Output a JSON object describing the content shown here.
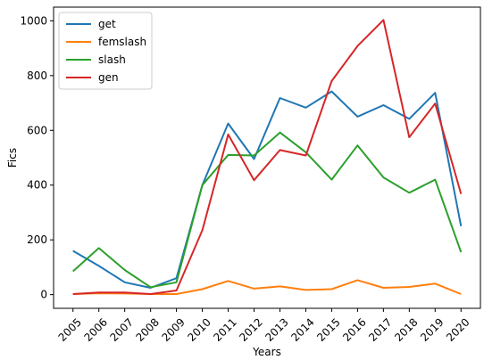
{
  "chart_data": {
    "type": "line",
    "x": [
      2005,
      2006,
      2007,
      2008,
      2009,
      2010,
      2011,
      2012,
      2013,
      2014,
      2015,
      2016,
      2017,
      2018,
      2019,
      2020
    ],
    "x_tick_labels": [
      "2005",
      "2006",
      "2007",
      "2008",
      "2009",
      "2010",
      "2011",
      "2012",
      "2013",
      "2014",
      "2015",
      "2016",
      "2017",
      "2018",
      "2019",
      "2020"
    ],
    "xlabel": "Years",
    "ylabel": "Fics",
    "ylim": [
      -50,
      1050
    ],
    "y_ticks": [
      0,
      200,
      400,
      600,
      800,
      1000
    ],
    "y_tick_labels": [
      "0",
      "200",
      "400",
      "600",
      "800",
      "1000"
    ],
    "grid": false,
    "legend_position": "top-left",
    "series": [
      {
        "name": "get",
        "color": "#1f77b4",
        "values": [
          160,
          105,
          45,
          25,
          60,
          400,
          625,
          495,
          718,
          683,
          742,
          650,
          692,
          642,
          737,
          250
        ]
      },
      {
        "name": "femslash",
        "color": "#ff7f0e",
        "values": [
          2,
          5,
          4,
          2,
          2,
          20,
          50,
          22,
          30,
          17,
          20,
          53,
          25,
          28,
          40,
          2
        ]
      },
      {
        "name": "slash",
        "color": "#2ca02c",
        "values": [
          85,
          170,
          90,
          27,
          45,
          400,
          510,
          508,
          592,
          520,
          420,
          545,
          428,
          372,
          420,
          155
        ]
      },
      {
        "name": "gen",
        "color": "#d62728",
        "values": [
          2,
          8,
          8,
          2,
          15,
          235,
          585,
          418,
          528,
          508,
          780,
          908,
          1003,
          575,
          698,
          368
        ]
      }
    ]
  }
}
